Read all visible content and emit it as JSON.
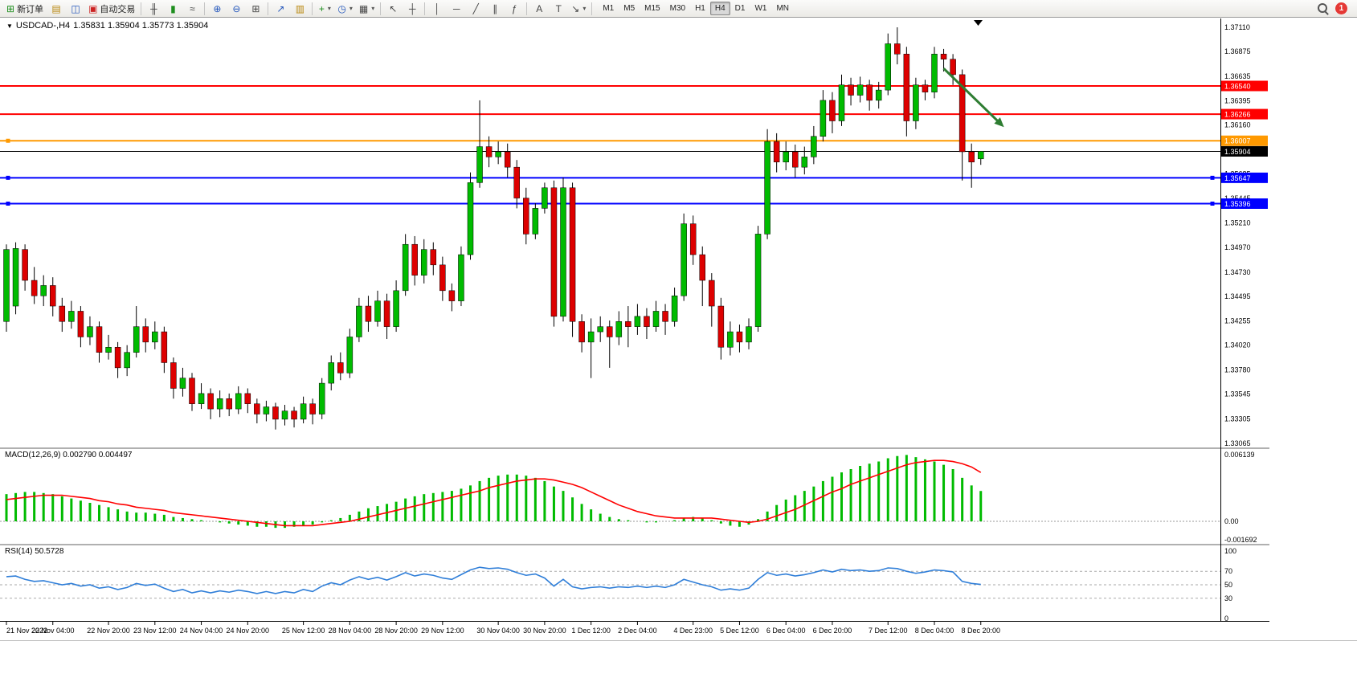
{
  "toolbar": {
    "new_order_label": "新订单",
    "auto_trading_label": "自动交易",
    "timeframes": [
      "M1",
      "M5",
      "M15",
      "M30",
      "H1",
      "H4",
      "D1",
      "W1",
      "MN"
    ],
    "active_timeframe": "H4",
    "notification_count": "1"
  },
  "icons": {
    "new_order": "⊞",
    "chart_windows": "▤",
    "profiles": "◫",
    "auto_trading": "▣",
    "bars_chart": "╫",
    "candle_chart": "▮",
    "line_chart": "≈",
    "zoom_in": "⊕",
    "zoom_out": "⊖",
    "tile_windows": "⊞",
    "indicators": "↗",
    "objects_list": "▥",
    "add_indicator": "+",
    "periods_clock": "◷",
    "templates": "▦",
    "cursor": "↖",
    "crosshair": "┼",
    "vertical_line": "│",
    "horizontal_line": "─",
    "trend_line": "╱",
    "channel": "∥",
    "fibonacci": "ƒ",
    "text": "A",
    "text_label": "T",
    "arrow_tool": "↘",
    "dropdown": "▾",
    "dropdown_black": "▼"
  },
  "chart": {
    "symbol_period": "USDCAD-,H4",
    "ohlc": "1.35831 1.35904 1.35773 1.35904"
  },
  "chart_data": [
    {
      "type": "candlestick",
      "symbol": "USDCAD-",
      "timeframe": "H4",
      "y_axis": {
        "top": 1.3711,
        "bottom": 1.33065
      },
      "price_ticks": [
        "1.37110",
        "1.36875",
        "1.36635",
        "1.36395",
        "1.36160",
        "1.35920",
        "1.35685",
        "1.35445",
        "1.35210",
        "1.34970",
        "1.34730",
        "1.34495",
        "1.34255",
        "1.34020",
        "1.33780",
        "1.33545",
        "1.33305",
        "1.33065"
      ],
      "hlines": [
        {
          "price": 1.3654,
          "text": "1.36540",
          "color": "#FF0000",
          "width": 2,
          "style": "solid",
          "handles": []
        },
        {
          "price": 1.36266,
          "text": "1.36266",
          "color": "#FF0000",
          "width": 2,
          "style": "solid",
          "handles": []
        },
        {
          "price": 1.36007,
          "text": "1.36007",
          "color": "#FF9900",
          "width": 2,
          "style": "solid",
          "handles": [
            0
          ]
        },
        {
          "price": 1.35904,
          "text": "1.35904",
          "color": "#000000",
          "width": 1,
          "style": "solid",
          "handles": []
        },
        {
          "price": 1.35647,
          "text": "1.35647",
          "color": "#0000FF",
          "width": 2,
          "style": "solid",
          "handles": [
            0,
            1
          ]
        },
        {
          "price": 1.35396,
          "text": "1.35396",
          "color": "#0000FF",
          "width": 2,
          "style": "solid",
          "handles": [
            0,
            1
          ]
        }
      ],
      "arrow": {
        "from_bar": 101,
        "from_price": 1.3671,
        "to_bar": 107.5,
        "to_price": 1.3614,
        "color": "#2E7D32"
      },
      "colors": {
        "up": "#00BB00",
        "down": "#DD0000",
        "wick": "#000000"
      },
      "time_labels": [
        {
          "text": "21 Nov 2022",
          "bar": 0
        },
        {
          "text": "22 Nov 04:00",
          "bar": 5
        },
        {
          "text": "22 Nov 20:00",
          "bar": 11
        },
        {
          "text": "23 Nov 12:00",
          "bar": 16
        },
        {
          "text": "24 Nov 04:00",
          "bar": 21
        },
        {
          "text": "24 Nov 20:00",
          "bar": 26
        },
        {
          "text": "25 Nov 12:00",
          "bar": 32
        },
        {
          "text": "28 Nov 04:00",
          "bar": 37
        },
        {
          "text": "28 Nov 20:00",
          "bar": 42
        },
        {
          "text": "29 Nov 12:00",
          "bar": 47
        },
        {
          "text": "30 Nov 04:00",
          "bar": 53
        },
        {
          "text": "30 Nov 20:00",
          "bar": 58
        },
        {
          "text": "1 Dec 12:00",
          "bar": 63
        },
        {
          "text": "2 Dec 04:00",
          "bar": 68
        },
        {
          "text": "4 Dec 23:00",
          "bar": 74
        },
        {
          "text": "5 Dec 12:00",
          "bar": 79
        },
        {
          "text": "6 Dec 04:00",
          "bar": 84
        },
        {
          "text": "6 Dec 20:00",
          "bar": 89
        },
        {
          "text": "7 Dec 12:00",
          "bar": 95
        },
        {
          "text": "8 Dec 04:00",
          "bar": 100
        },
        {
          "text": "8 Dec 20:00",
          "bar": 105
        }
      ],
      "candles": [
        [
          1.3425,
          1.35,
          1.3415,
          1.3495
        ],
        [
          1.344,
          1.3502,
          1.3432,
          1.3496
        ],
        [
          1.3495,
          1.35,
          1.3455,
          1.3465
        ],
        [
          1.3465,
          1.3478,
          1.3442,
          1.345
        ],
        [
          1.345,
          1.347,
          1.344,
          1.346
        ],
        [
          1.346,
          1.3468,
          1.343,
          1.344
        ],
        [
          1.344,
          1.3448,
          1.3415,
          1.3425
        ],
        [
          1.3425,
          1.3445,
          1.3418,
          1.3435
        ],
        [
          1.3435,
          1.344,
          1.34,
          1.341
        ],
        [
          1.341,
          1.343,
          1.3402,
          1.342
        ],
        [
          1.342,
          1.3425,
          1.3385,
          1.3395
        ],
        [
          1.3395,
          1.3412,
          1.3388,
          1.34
        ],
        [
          1.34,
          1.3405,
          1.337,
          1.338
        ],
        [
          1.338,
          1.3402,
          1.3372,
          1.3395
        ],
        [
          1.3395,
          1.344,
          1.339,
          1.342
        ],
        [
          1.342,
          1.3428,
          1.3395,
          1.3405
        ],
        [
          1.3405,
          1.3425,
          1.3398,
          1.3415
        ],
        [
          1.3415,
          1.342,
          1.3375,
          1.3385
        ],
        [
          1.3385,
          1.339,
          1.335,
          1.336
        ],
        [
          1.336,
          1.338,
          1.3352,
          1.337
        ],
        [
          1.337,
          1.3375,
          1.3338,
          1.3345
        ],
        [
          1.3345,
          1.3365,
          1.334,
          1.3355
        ],
        [
          1.3355,
          1.336,
          1.333,
          1.334
        ],
        [
          1.334,
          1.3358,
          1.3332,
          1.335
        ],
        [
          1.335,
          1.3355,
          1.3333,
          1.334
        ],
        [
          1.334,
          1.3362,
          1.3335,
          1.3355
        ],
        [
          1.3355,
          1.336,
          1.3336,
          1.3345
        ],
        [
          1.3345,
          1.335,
          1.3326,
          1.3335
        ],
        [
          1.3335,
          1.3348,
          1.3328,
          1.3342
        ],
        [
          1.3342,
          1.3346,
          1.332,
          1.333
        ],
        [
          1.333,
          1.3344,
          1.3324,
          1.3338
        ],
        [
          1.3338,
          1.3342,
          1.3322,
          1.333
        ],
        [
          1.333,
          1.3352,
          1.3326,
          1.3345
        ],
        [
          1.3345,
          1.335,
          1.3325,
          1.3335
        ],
        [
          1.3335,
          1.337,
          1.333,
          1.3365
        ],
        [
          1.3365,
          1.3392,
          1.3358,
          1.3385
        ],
        [
          1.3385,
          1.3395,
          1.3368,
          1.3375
        ],
        [
          1.3375,
          1.3418,
          1.337,
          1.341
        ],
        [
          1.341,
          1.3448,
          1.3405,
          1.344
        ],
        [
          1.344,
          1.345,
          1.3415,
          1.3425
        ],
        [
          1.3425,
          1.3455,
          1.342,
          1.3445
        ],
        [
          1.3445,
          1.3452,
          1.3408,
          1.342
        ],
        [
          1.342,
          1.3465,
          1.3415,
          1.3455
        ],
        [
          1.3455,
          1.351,
          1.345,
          1.35
        ],
        [
          1.35,
          1.3508,
          1.346,
          1.347
        ],
        [
          1.347,
          1.3505,
          1.3462,
          1.3495
        ],
        [
          1.3495,
          1.3502,
          1.347,
          1.348
        ],
        [
          1.348,
          1.3488,
          1.3445,
          1.3455
        ],
        [
          1.3455,
          1.3462,
          1.3435,
          1.3445
        ],
        [
          1.3445,
          1.3498,
          1.344,
          1.349
        ],
        [
          1.349,
          1.357,
          1.3485,
          1.356
        ],
        [
          1.356,
          1.364,
          1.3555,
          1.3595
        ],
        [
          1.3595,
          1.3605,
          1.3575,
          1.3585
        ],
        [
          1.3585,
          1.36,
          1.3578,
          1.359
        ],
        [
          1.359,
          1.3598,
          1.3565,
          1.3575
        ],
        [
          1.3575,
          1.3582,
          1.3535,
          1.3545
        ],
        [
          1.3545,
          1.3555,
          1.35,
          1.351
        ],
        [
          1.351,
          1.354,
          1.3505,
          1.3535
        ],
        [
          1.3535,
          1.356,
          1.353,
          1.3555
        ],
        [
          1.3555,
          1.3562,
          1.342,
          1.343
        ],
        [
          1.343,
          1.3565,
          1.3425,
          1.3555
        ],
        [
          1.3555,
          1.356,
          1.341,
          1.3425
        ],
        [
          1.3425,
          1.3432,
          1.3395,
          1.3405
        ],
        [
          1.3405,
          1.3428,
          1.337,
          1.3415
        ],
        [
          1.3415,
          1.343,
          1.3405,
          1.342
        ],
        [
          1.342,
          1.3426,
          1.338,
          1.341
        ],
        [
          1.341,
          1.3435,
          1.3402,
          1.3425
        ],
        [
          1.3425,
          1.344,
          1.34,
          1.342
        ],
        [
          1.342,
          1.3442,
          1.3412,
          1.343
        ],
        [
          1.343,
          1.3438,
          1.3408,
          1.342
        ],
        [
          1.342,
          1.3445,
          1.3415,
          1.3435
        ],
        [
          1.3435,
          1.3442,
          1.3412,
          1.3425
        ],
        [
          1.3425,
          1.3458,
          1.342,
          1.345
        ],
        [
          1.345,
          1.353,
          1.3445,
          1.352
        ],
        [
          1.352,
          1.3528,
          1.348,
          1.349
        ],
        [
          1.349,
          1.3498,
          1.344,
          1.3465
        ],
        [
          1.3465,
          1.3472,
          1.342,
          1.344
        ],
        [
          1.344,
          1.3448,
          1.3388,
          1.34
        ],
        [
          1.34,
          1.3425,
          1.3392,
          1.3415
        ],
        [
          1.3415,
          1.3422,
          1.3395,
          1.3405
        ],
        [
          1.3405,
          1.3428,
          1.3398,
          1.342
        ],
        [
          1.342,
          1.3518,
          1.3415,
          1.351
        ],
        [
          1.351,
          1.3612,
          1.3505,
          1.36
        ],
        [
          1.36,
          1.3608,
          1.357,
          1.358
        ],
        [
          1.358,
          1.36,
          1.3572,
          1.359
        ],
        [
          1.359,
          1.3597,
          1.3565,
          1.3575
        ],
        [
          1.3575,
          1.3595,
          1.3568,
          1.3585
        ],
        [
          1.3585,
          1.3615,
          1.3578,
          1.3605
        ],
        [
          1.3605,
          1.365,
          1.36,
          1.364
        ],
        [
          1.364,
          1.3648,
          1.3608,
          1.362
        ],
        [
          1.362,
          1.3665,
          1.3615,
          1.3655
        ],
        [
          1.3655,
          1.3662,
          1.3635,
          1.3645
        ],
        [
          1.3645,
          1.3663,
          1.3638,
          1.3655
        ],
        [
          1.3655,
          1.366,
          1.363,
          1.364
        ],
        [
          1.364,
          1.3658,
          1.3632,
          1.365
        ],
        [
          1.365,
          1.3705,
          1.3645,
          1.3695
        ],
        [
          1.3695,
          1.3711,
          1.3675,
          1.3685
        ],
        [
          1.3685,
          1.3692,
          1.3605,
          1.362
        ],
        [
          1.362,
          1.3662,
          1.3612,
          1.3655
        ],
        [
          1.3655,
          1.366,
          1.364,
          1.3648
        ],
        [
          1.3648,
          1.3692,
          1.3642,
          1.3685
        ],
        [
          1.3685,
          1.369,
          1.3668,
          1.368
        ],
        [
          1.368,
          1.3685,
          1.3655,
          1.3665
        ],
        [
          1.3665,
          1.367,
          1.3562,
          1.359
        ],
        [
          1.359,
          1.3598,
          1.3555,
          1.358
        ],
        [
          1.35831,
          1.35904,
          1.35773,
          1.35904
        ]
      ]
    },
    {
      "type": "macd",
      "label": "MACD(12,26,9) 0.002790 0.004497",
      "params": "12,26,9",
      "main_value": "0.002790",
      "signal_value": "0.004497",
      "colors": {
        "histogram": "#00BB00",
        "signal": "#FF0000"
      },
      "axis_labels": [
        {
          "text": "0.006139",
          "value": 0.006139
        },
        {
          "text": "0.00",
          "value": 0
        },
        {
          "text": "-0.001692",
          "value": -0.001692
        }
      ],
      "histogram": [
        0.0025,
        0.0026,
        0.0027,
        0.0027,
        0.0026,
        0.0025,
        0.0023,
        0.0021,
        0.0019,
        0.0017,
        0.0015,
        0.0013,
        0.0011,
        0.0009,
        0.0008,
        0.0008,
        0.0007,
        0.0006,
        0.0004,
        0.0003,
        0.0002,
        0.0001,
        0.0,
        -0.0001,
        -0.0002,
        -0.0003,
        -0.0004,
        -0.0005,
        -0.0005,
        -0.0006,
        -0.0006,
        -0.0005,
        -0.0004,
        -0.0003,
        -0.0001,
        0.0001,
        0.0003,
        0.0006,
        0.0009,
        0.0012,
        0.0014,
        0.0016,
        0.0018,
        0.0021,
        0.0023,
        0.0025,
        0.0026,
        0.0027,
        0.0028,
        0.003,
        0.0033,
        0.0037,
        0.004,
        0.0042,
        0.0043,
        0.0043,
        0.0042,
        0.004,
        0.0037,
        0.0032,
        0.0028,
        0.0022,
        0.0016,
        0.0011,
        0.0007,
        0.0004,
        0.0002,
        0.0001,
        0.0,
        -0.0001,
        -0.0001,
        0.0,
        0.0001,
        0.0003,
        0.0004,
        0.0003,
        0.0001,
        -0.0002,
        -0.0004,
        -0.0005,
        -0.0003,
        0.0002,
        0.0009,
        0.0015,
        0.002,
        0.0024,
        0.0028,
        0.0032,
        0.0037,
        0.0041,
        0.0045,
        0.0048,
        0.0051,
        0.0053,
        0.0055,
        0.0058,
        0.006,
        0.0061,
        0.0059,
        0.0057,
        0.0055,
        0.0052,
        0.0048,
        0.004,
        0.0033,
        0.00279
      ],
      "signal": [
        0.002,
        0.0021,
        0.0022,
        0.0023,
        0.0024,
        0.0024,
        0.0024,
        0.0023,
        0.0022,
        0.0021,
        0.0019,
        0.0018,
        0.0016,
        0.0015,
        0.0013,
        0.0012,
        0.0011,
        0.001,
        0.0008,
        0.0007,
        0.0006,
        0.0005,
        0.0004,
        0.0003,
        0.0002,
        0.0001,
        0.0,
        -0.0001,
        -0.0002,
        -0.0003,
        -0.0004,
        -0.0004,
        -0.0004,
        -0.0004,
        -0.0003,
        -0.0002,
        -0.0001,
        0.0,
        0.0002,
        0.0004,
        0.0006,
        0.0008,
        0.001,
        0.0012,
        0.0014,
        0.0016,
        0.0018,
        0.002,
        0.0022,
        0.0024,
        0.0026,
        0.0028,
        0.0031,
        0.0033,
        0.0035,
        0.0037,
        0.0038,
        0.0039,
        0.0039,
        0.0038,
        0.0036,
        0.0034,
        0.0031,
        0.0027,
        0.0023,
        0.0019,
        0.0015,
        0.0012,
        0.0009,
        0.0007,
        0.0005,
        0.0004,
        0.0003,
        0.0003,
        0.0003,
        0.0003,
        0.0003,
        0.0002,
        0.0001,
        0.0,
        -0.0001,
        0.0,
        0.0002,
        0.0005,
        0.0008,
        0.0011,
        0.0015,
        0.0019,
        0.0023,
        0.0027,
        0.003,
        0.0034,
        0.0037,
        0.004,
        0.0043,
        0.0046,
        0.0049,
        0.0052,
        0.0054,
        0.0055,
        0.0056,
        0.0056,
        0.0055,
        0.0053,
        0.005,
        0.004497
      ]
    },
    {
      "type": "rsi",
      "label": "RSI(14) 50.5728",
      "period": 14,
      "value": "50.5728",
      "color": "#2F7ED8",
      "range": [
        0,
        100
      ],
      "levels": [
        70,
        50,
        30
      ],
      "axis_labels": [
        "100",
        "70",
        "50",
        "30",
        "0"
      ],
      "values": [
        62,
        63,
        58,
        55,
        56,
        53,
        50,
        52,
        48,
        50,
        45,
        47,
        43,
        46,
        52,
        49,
        51,
        45,
        40,
        43,
        38,
        41,
        38,
        41,
        39,
        42,
        40,
        37,
        40,
        37,
        40,
        38,
        43,
        40,
        48,
        53,
        50,
        57,
        62,
        58,
        61,
        57,
        62,
        68,
        63,
        66,
        64,
        60,
        58,
        65,
        72,
        76,
        74,
        75,
        73,
        68,
        64,
        66,
        60,
        48,
        58,
        47,
        44,
        46,
        47,
        45,
        47,
        46,
        48,
        46,
        48,
        46,
        50,
        58,
        54,
        50,
        47,
        42,
        44,
        42,
        45,
        58,
        68,
        64,
        66,
        63,
        65,
        68,
        72,
        69,
        73,
        71,
        72,
        70,
        71,
        75,
        74,
        70,
        67,
        69,
        72,
        71,
        69,
        55,
        52,
        50.57
      ]
    }
  ]
}
